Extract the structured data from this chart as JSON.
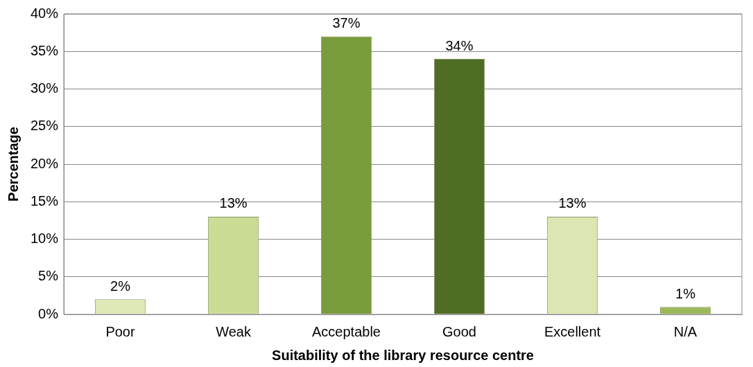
{
  "chart_data": {
    "type": "bar",
    "xlabel": "Suitability of the library resource centre",
    "ylabel": "Percentage",
    "categories": [
      "Poor",
      "Weak",
      "Acceptable",
      "Good",
      "Excellent",
      "N/A"
    ],
    "values": [
      2,
      13,
      37,
      34,
      13,
      1
    ],
    "colors": [
      "#dfe9b8",
      "#cbdc95",
      "#7a9c3c",
      "#506d26",
      "#dbe6b3",
      "#9cb858"
    ],
    "ylim": [
      0,
      40
    ],
    "yticks": [
      {
        "value": 0,
        "label": "0%"
      },
      {
        "value": 5,
        "label": "5%"
      },
      {
        "value": 10,
        "label": "10%"
      },
      {
        "value": 15,
        "label": "15%"
      },
      {
        "value": 20,
        "label": "20%"
      },
      {
        "value": 25,
        "label": "25%"
      },
      {
        "value": 30,
        "label": "30%"
      },
      {
        "value": 35,
        "label": "35%"
      },
      {
        "value": 40,
        "label": "40%"
      }
    ],
    "value_labels": [
      "2%",
      "13%",
      "37%",
      "34%",
      "13%",
      "1%"
    ],
    "grid": "y",
    "legend": false
  }
}
